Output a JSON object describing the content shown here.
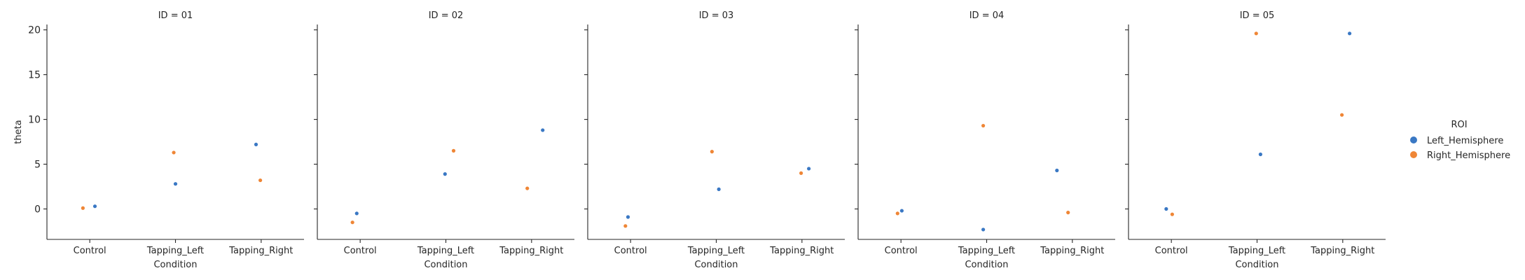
{
  "chart_data": {
    "type": "scatter",
    "facet_label_prefix": "ID = ",
    "x_label": "Condition",
    "y_label": "theta",
    "categories": [
      "Control",
      "Tapping_Left",
      "Tapping_Right"
    ],
    "y_ticks": [
      0,
      5,
      10,
      15,
      20
    ],
    "ylim": [
      -3.4,
      20.6
    ],
    "legend": {
      "title": "ROI",
      "placement": "right",
      "entries": [
        {
          "name": "Left_Hemisphere",
          "color": "#3a78c4"
        },
        {
          "name": "Right_Hemisphere",
          "color": "#ef8636"
        }
      ]
    },
    "facets": [
      {
        "id": "01",
        "points": [
          {
            "series": "Left_Hemisphere",
            "category": "Control",
            "jitter": 0.06,
            "y": 0.3
          },
          {
            "series": "Right_Hemisphere",
            "category": "Control",
            "jitter": -0.08,
            "y": 0.1
          },
          {
            "series": "Left_Hemisphere",
            "category": "Tapping_Left",
            "jitter": 0.0,
            "y": 2.8
          },
          {
            "series": "Right_Hemisphere",
            "category": "Tapping_Left",
            "jitter": -0.02,
            "y": 6.3
          },
          {
            "series": "Left_Hemisphere",
            "category": "Tapping_Right",
            "jitter": -0.06,
            "y": 7.2
          },
          {
            "series": "Right_Hemisphere",
            "category": "Tapping_Right",
            "jitter": -0.01,
            "y": 3.2
          }
        ]
      },
      {
        "id": "02",
        "points": [
          {
            "series": "Left_Hemisphere",
            "category": "Control",
            "jitter": -0.04,
            "y": -0.5
          },
          {
            "series": "Right_Hemisphere",
            "category": "Control",
            "jitter": -0.09,
            "y": -1.5
          },
          {
            "series": "Left_Hemisphere",
            "category": "Tapping_Left",
            "jitter": -0.01,
            "y": 3.9
          },
          {
            "series": "Right_Hemisphere",
            "category": "Tapping_Left",
            "jitter": 0.09,
            "y": 6.5
          },
          {
            "series": "Left_Hemisphere",
            "category": "Tapping_Right",
            "jitter": 0.13,
            "y": 8.8
          },
          {
            "series": "Right_Hemisphere",
            "category": "Tapping_Right",
            "jitter": -0.05,
            "y": 2.3
          }
        ]
      },
      {
        "id": "03",
        "points": [
          {
            "series": "Left_Hemisphere",
            "category": "Control",
            "jitter": -0.03,
            "y": -0.9
          },
          {
            "series": "Right_Hemisphere",
            "category": "Control",
            "jitter": -0.06,
            "y": -1.9
          },
          {
            "series": "Left_Hemisphere",
            "category": "Tapping_Left",
            "jitter": 0.03,
            "y": 2.2
          },
          {
            "series": "Right_Hemisphere",
            "category": "Tapping_Left",
            "jitter": -0.05,
            "y": 6.4
          },
          {
            "series": "Left_Hemisphere",
            "category": "Tapping_Right",
            "jitter": 0.08,
            "y": 4.5
          },
          {
            "series": "Right_Hemisphere",
            "category": "Tapping_Right",
            "jitter": -0.01,
            "y": 4.0
          }
        ]
      },
      {
        "id": "04",
        "points": [
          {
            "series": "Left_Hemisphere",
            "category": "Control",
            "jitter": 0.01,
            "y": -0.2
          },
          {
            "series": "Right_Hemisphere",
            "category": "Control",
            "jitter": -0.04,
            "y": -0.5
          },
          {
            "series": "Left_Hemisphere",
            "category": "Tapping_Left",
            "jitter": -0.04,
            "y": -2.3
          },
          {
            "series": "Right_Hemisphere",
            "category": "Tapping_Left",
            "jitter": -0.04,
            "y": 9.3
          },
          {
            "series": "Left_Hemisphere",
            "category": "Tapping_Right",
            "jitter": -0.18,
            "y": 4.3
          },
          {
            "series": "Right_Hemisphere",
            "category": "Tapping_Right",
            "jitter": -0.05,
            "y": -0.4
          }
        ]
      },
      {
        "id": "05",
        "points": [
          {
            "series": "Left_Hemisphere",
            "category": "Control",
            "jitter": -0.06,
            "y": 0.0
          },
          {
            "series": "Right_Hemisphere",
            "category": "Control",
            "jitter": 0.01,
            "y": -0.6
          },
          {
            "series": "Left_Hemisphere",
            "category": "Tapping_Left",
            "jitter": 0.04,
            "y": 6.1
          },
          {
            "series": "Right_Hemisphere",
            "category": "Tapping_Left",
            "jitter": -0.01,
            "y": 19.6
          },
          {
            "series": "Left_Hemisphere",
            "category": "Tapping_Right",
            "jitter": 0.08,
            "y": 19.6
          },
          {
            "series": "Right_Hemisphere",
            "category": "Tapping_Right",
            "jitter": -0.01,
            "y": 10.5
          }
        ]
      }
    ]
  }
}
